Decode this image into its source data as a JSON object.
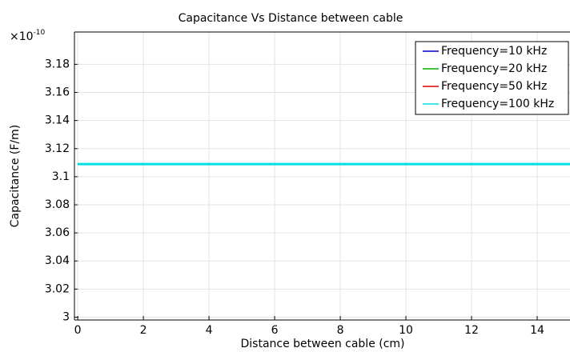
{
  "chart_data": {
    "type": "line",
    "title": "Capacitance Vs Distance between cable",
    "x_label": "Distance between cable (cm)",
    "y_label": "Capacitance (F/m)",
    "y_multiplier": "×10",
    "y_multiplier_exponent": "-10",
    "x": [
      0,
      5,
      10,
      15
    ],
    "series": [
      {
        "name": "Frequency=10 kHz",
        "color": "#0000cc",
        "values": [
          3.109,
          3.109,
          3.109,
          3.109
        ]
      },
      {
        "name": "Frequency=20 kHz",
        "color": "#00b000",
        "values": [
          3.109,
          3.109,
          3.109,
          3.109
        ]
      },
      {
        "name": "Frequency=50 kHz",
        "color": "#e00000",
        "values": [
          3.109,
          3.109,
          3.109,
          3.109
        ]
      },
      {
        "name": "Frequency=100 kHz",
        "color": "#00e0e0",
        "values": [
          3.109,
          3.109,
          3.109,
          3.109
        ]
      }
    ],
    "xlim": [
      -0.1,
      15
    ],
    "xticks": [
      0,
      2,
      4,
      6,
      8,
      10,
      12,
      14
    ],
    "ylim": [
      2.998,
      3.203
    ],
    "yticks": [
      3,
      3.02,
      3.04,
      3.06,
      3.08,
      3.1,
      3.12,
      3.14,
      3.16,
      3.18
    ],
    "grid": true,
    "legend": "upper right"
  }
}
